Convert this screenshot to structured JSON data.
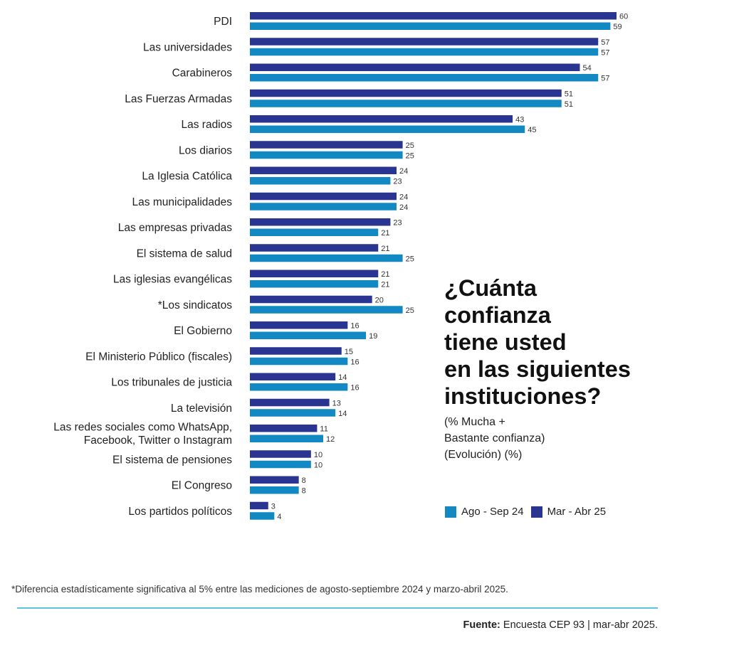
{
  "chart_data": {
    "type": "bar",
    "orientation": "horizontal",
    "title": "¿Cuánta confianza tiene usted en las siguientes instituciones?",
    "subtitle": "(% Mucha + Bastante confianza) (Evolución) (%)",
    "categories": [
      "PDI",
      "Las universidades",
      "Carabineros",
      "Las Fuerzas Armadas",
      "Las radios",
      "Los diarios",
      "La Iglesia Católica",
      "Las municipalidades",
      "Las empresas privadas",
      "El sistema de salud",
      "Las iglesias evangélicas",
      "*Los sindicatos",
      "El Gobierno",
      "El Ministerio Público (fiscales)",
      "Los tribunales de justicia",
      "La televisión",
      "Las redes sociales como WhatsApp, Facebook, Twitter o Instagram",
      "El sistema de pensiones",
      "El Congreso",
      "Los partidos políticos"
    ],
    "series": [
      {
        "name": "Mar - Abr 25",
        "color": "#2a3591",
        "values": [
          60,
          57,
          54,
          51,
          43,
          25,
          24,
          24,
          23,
          21,
          21,
          20,
          16,
          15,
          14,
          13,
          11,
          10,
          8,
          3
        ]
      },
      {
        "name": "Ago - Sep 24",
        "color": "#1389c4",
        "values": [
          59,
          57,
          57,
          51,
          45,
          25,
          23,
          24,
          21,
          25,
          21,
          25,
          19,
          16,
          16,
          14,
          12,
          10,
          8,
          4
        ]
      }
    ],
    "xlim": [
      0,
      60
    ],
    "grid": false,
    "legend_position": "bottom-right"
  },
  "title_lines": "¿Cuánta\nconfianza\ntiene usted\nen las siguientes\ninstituciones?",
  "subtitle_lines": "(% Mucha +\nBastante confianza)\n(Evolución) (%)",
  "legend": {
    "item1_label": "Ago - Sep 24",
    "item1_color": "#1389c4",
    "item2_label": "Mar - Abr 25",
    "item2_color": "#2a3591"
  },
  "footnote": "*Diferencia estadísticamente significativa al 5% entre las mediciones de agosto-septiembre 2024 y marzo-abril 2025.",
  "source": {
    "label": "Fuente:",
    "text": " Encuesta CEP 93 | mar-abr 2025."
  }
}
